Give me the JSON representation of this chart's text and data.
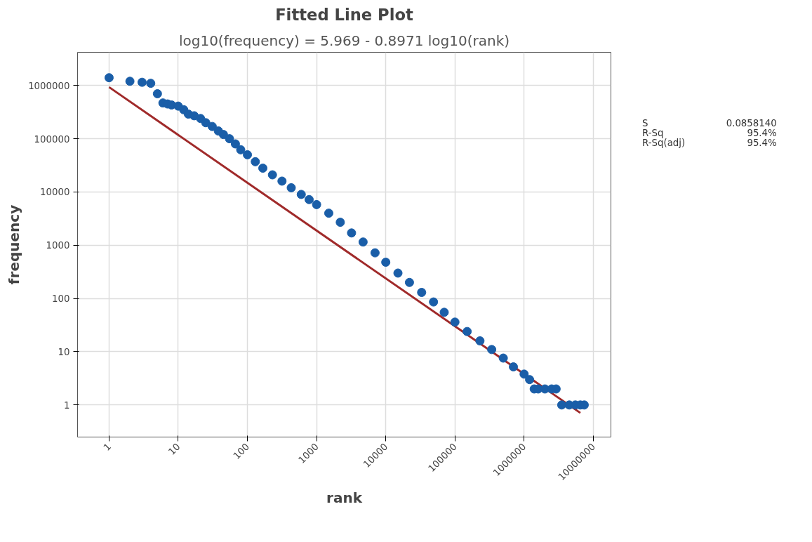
{
  "chart_data": {
    "type": "scatter",
    "title": "Fitted Line Plot",
    "subtitle": "log10(frequency) = 5.969 - 0.8971 log10(rank)",
    "xlabel": "rank",
    "ylabel": "frequency",
    "annotations": [
      "S 0.0858140",
      "R-Sq 95.4%",
      "R-Sq(adj) 95.4%"
    ],
    "log": "xy",
    "grid": true,
    "xlim": [
      0.35,
      18000000
    ],
    "ylim": [
      0.25,
      4200000
    ],
    "xticks": [
      1,
      10,
      100,
      1000,
      10000,
      100000,
      1000000,
      10000000
    ],
    "yticks": [
      1,
      10,
      100,
      1000,
      10000,
      100000,
      1000000
    ],
    "series": [
      {
        "marker": "circle",
        "color": "#1a5ea8",
        "x": [
          1,
          2,
          3,
          4,
          5,
          6,
          7,
          8,
          10,
          12,
          14,
          17,
          21,
          25,
          31,
          38,
          45,
          55,
          67,
          80,
          100,
          130,
          167,
          230,
          316,
          430,
          600,
          780,
          1000,
          1500,
          2200,
          3200,
          4700,
          7000,
          10000,
          15000,
          22000,
          33000,
          49000,
          70000,
          100000,
          150000,
          230000,
          340000,
          500000,
          700000,
          1000000,
          1200000,
          1400000,
          1600000,
          2000000,
          2500000,
          2900000,
          3500000,
          4500000,
          5500000,
          6500000,
          7400000
        ],
        "values": [
          1400000,
          1200000,
          1150000,
          1100000,
          700000,
          470000,
          450000,
          430000,
          410000,
          350000,
          290000,
          270000,
          240000,
          200000,
          170000,
          140000,
          120000,
          100000,
          80000,
          62000,
          50000,
          37000,
          28000,
          21000,
          16000,
          12000,
          9000,
          7200,
          5800,
          4000,
          2700,
          1700,
          1150,
          720,
          480,
          300,
          200,
          130,
          86,
          55,
          36,
          24,
          16,
          11,
          7.6,
          5.2,
          3.8,
          3,
          2,
          2,
          2,
          2,
          2,
          1,
          1,
          1,
          1,
          1
        ]
      },
      {
        "type": "line",
        "color": "#a02a2a",
        "x": [
          1,
          6500000
        ],
        "values": [
          931000,
          0.71
        ]
      }
    ]
  }
}
